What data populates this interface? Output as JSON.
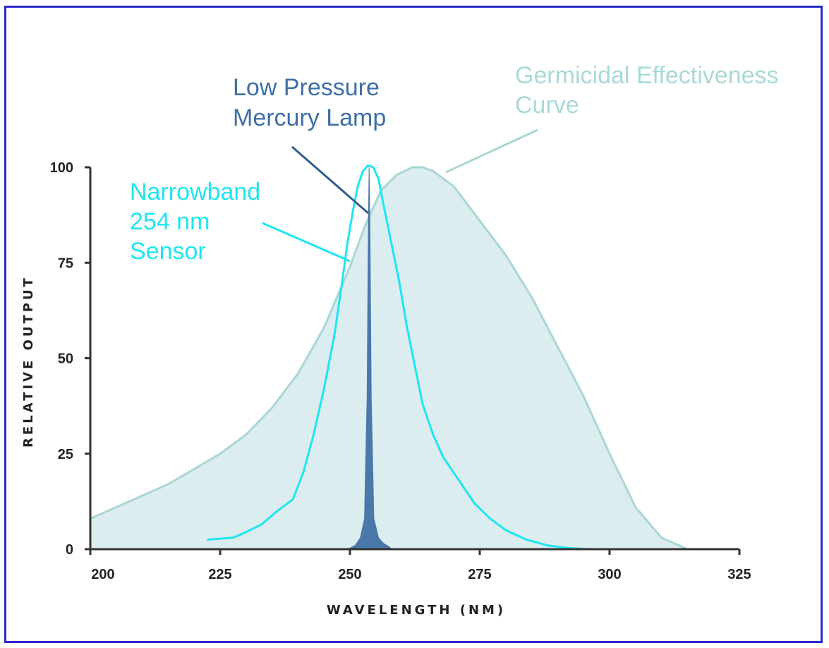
{
  "chart_data": {
    "type": "area",
    "xlabel": "WAVELENGTH (NM)",
    "ylabel": "RELATIVE OUTPUT",
    "xlim": [
      200,
      325
    ],
    "ylim": [
      0,
      100
    ],
    "x_ticks": [
      "200",
      "225",
      "250",
      "275",
      "300",
      "325"
    ],
    "y_ticks": [
      "0",
      "25",
      "50",
      "75",
      "100"
    ],
    "grid": false,
    "legend": "none",
    "series": [
      {
        "name": "Germicidal Effectiveness Curve",
        "style": "filled-area",
        "color": "#a9d6d6",
        "fill": "#dcedf0",
        "points": [
          [
            200,
            8
          ],
          [
            205,
            11
          ],
          [
            210,
            14
          ],
          [
            215,
            17
          ],
          [
            220,
            21
          ],
          [
            225,
            25
          ],
          [
            230,
            30
          ],
          [
            235,
            37
          ],
          [
            240,
            46
          ],
          [
            245,
            58
          ],
          [
            250,
            74
          ],
          [
            253,
            85
          ],
          [
            256,
            94
          ],
          [
            259,
            98
          ],
          [
            262,
            100
          ],
          [
            264,
            100
          ],
          [
            266,
            99
          ],
          [
            270,
            95
          ],
          [
            275,
            86
          ],
          [
            280,
            77
          ],
          [
            285,
            66
          ],
          [
            290,
            53
          ],
          [
            295,
            40
          ],
          [
            300,
            25
          ],
          [
            305,
            11
          ],
          [
            310,
            3
          ],
          [
            315,
            0
          ]
        ]
      },
      {
        "name": "Narrowband 254 nm Sensor",
        "style": "line",
        "color": "#1ee6f0",
        "points": [
          [
            222.5,
            2.5
          ],
          [
            227.5,
            3
          ],
          [
            230,
            4.5
          ],
          [
            233,
            6.5
          ],
          [
            236,
            10
          ],
          [
            239,
            13
          ],
          [
            241,
            20
          ],
          [
            243,
            30
          ],
          [
            245,
            42
          ],
          [
            247,
            56
          ],
          [
            248.5,
            70
          ],
          [
            249.5,
            80
          ],
          [
            250.5,
            88
          ],
          [
            251.5,
            95
          ],
          [
            252.5,
            99
          ],
          [
            253.5,
            100.5
          ],
          [
            254.5,
            100
          ],
          [
            255.5,
            97
          ],
          [
            256.5,
            90
          ],
          [
            258,
            80
          ],
          [
            259.5,
            70
          ],
          [
            261,
            58
          ],
          [
            262.5,
            48
          ],
          [
            264,
            38
          ],
          [
            266,
            30
          ],
          [
            268,
            24
          ],
          [
            271,
            18
          ],
          [
            274,
            12
          ],
          [
            277,
            8
          ],
          [
            280,
            5
          ],
          [
            284,
            2.5
          ],
          [
            288,
            1
          ],
          [
            292,
            0.3
          ],
          [
            296,
            0
          ]
        ]
      },
      {
        "name": "Low Pressure Mercury Lamp",
        "style": "filled-spike",
        "color": "#4a78a8",
        "points": [
          [
            249,
            0
          ],
          [
            250,
            0.3
          ],
          [
            251,
            1
          ],
          [
            252,
            3
          ],
          [
            252.8,
            8
          ],
          [
            253.3,
            40
          ],
          [
            253.55,
            85
          ],
          [
            253.7,
            100
          ],
          [
            253.85,
            85
          ],
          [
            254.1,
            40
          ],
          [
            254.6,
            8
          ],
          [
            255.5,
            3
          ],
          [
            256.5,
            1.5
          ],
          [
            257.5,
            0.7
          ],
          [
            258,
            0
          ]
        ]
      }
    ],
    "annotations": {
      "germicidal": [
        "Germicidal Effectiveness",
        "Curve"
      ],
      "lamp": [
        "Low Pressure",
        "Mercury Lamp"
      ],
      "sensor": [
        "Narrowband",
        "254 nm",
        "Sensor"
      ]
    }
  }
}
